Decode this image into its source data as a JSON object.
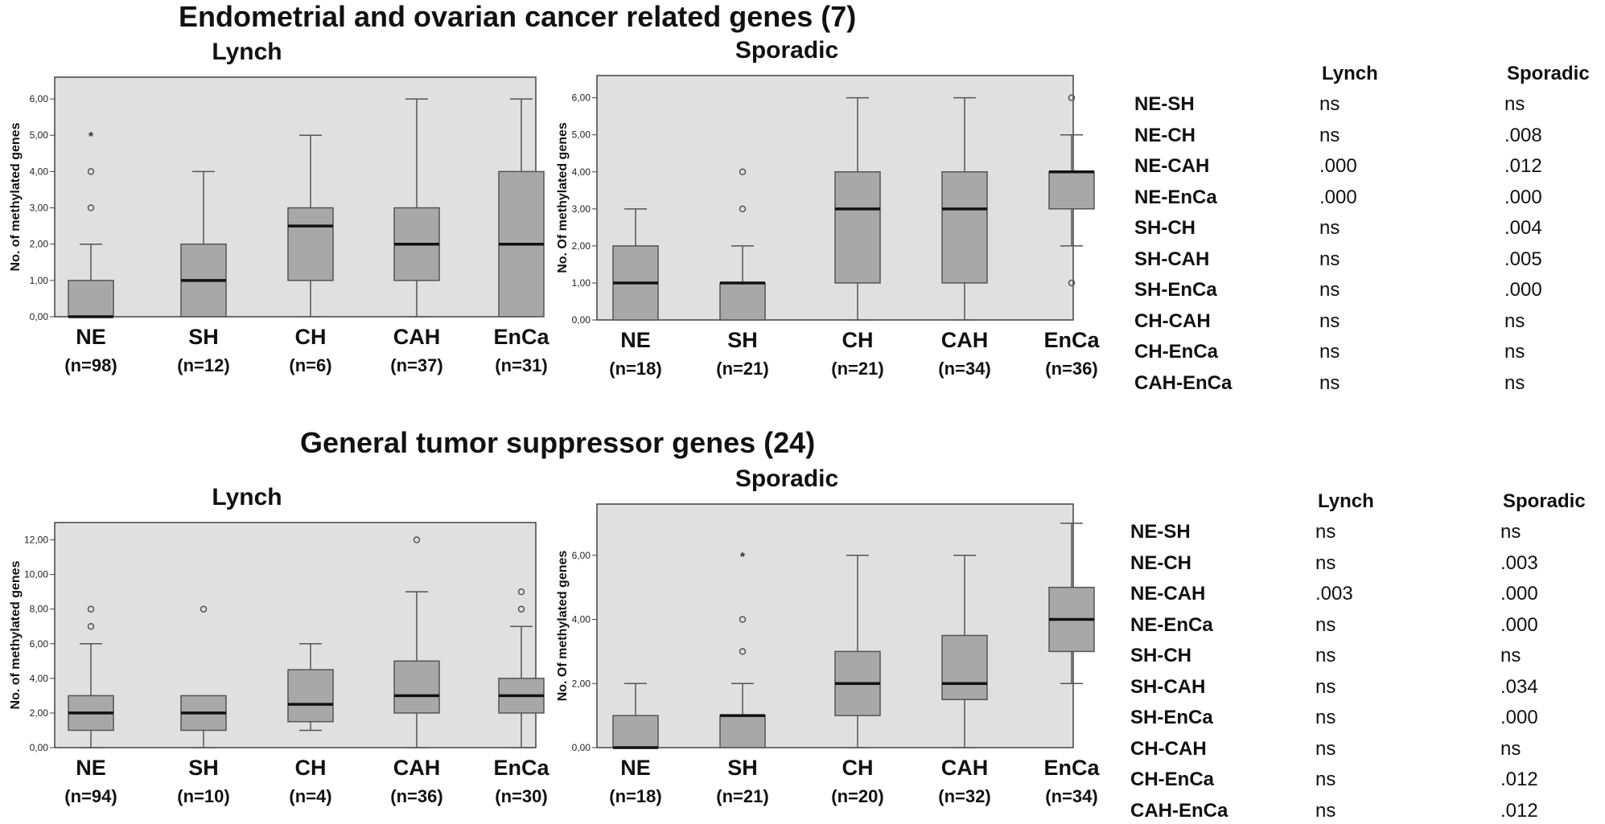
{
  "sections": [
    {
      "title": "Endometrial and ovarian cancer related genes (7)",
      "stats_table": {
        "columns": [
          "Lynch",
          "Sporadic"
        ],
        "rows": [
          {
            "pair": "NE-SH",
            "lynch": "ns",
            "sporadic": "ns"
          },
          {
            "pair": "NE-CH",
            "lynch": "ns",
            "sporadic": ".008"
          },
          {
            "pair": "NE-CAH",
            "lynch": ".000",
            "sporadic": ".012"
          },
          {
            "pair": "NE-EnCa",
            "lynch": ".000",
            "sporadic": ".000"
          },
          {
            "pair": "SH-CH",
            "lynch": "ns",
            "sporadic": ".004"
          },
          {
            "pair": "SH-CAH",
            "lynch": "ns",
            "sporadic": ".005"
          },
          {
            "pair": "SH-EnCa",
            "lynch": "ns",
            "sporadic": ".000"
          },
          {
            "pair": "CH-CAH",
            "lynch": "ns",
            "sporadic": "ns"
          },
          {
            "pair": "CH-EnCa",
            "lynch": "ns",
            "sporadic": "ns"
          },
          {
            "pair": "CAH-EnCa",
            "lynch": "ns",
            "sporadic": "ns"
          }
        ]
      }
    },
    {
      "title": "General tumor suppressor genes (24)",
      "stats_table": {
        "columns": [
          "Lynch",
          "Sporadic"
        ],
        "rows": [
          {
            "pair": "NE-SH",
            "lynch": "ns",
            "sporadic": "ns"
          },
          {
            "pair": "NE-CH",
            "lynch": "ns",
            "sporadic": ".003"
          },
          {
            "pair": "NE-CAH",
            "lynch": ".003",
            "sporadic": ".000"
          },
          {
            "pair": "NE-EnCa",
            "lynch": "ns",
            "sporadic": ".000"
          },
          {
            "pair": "SH-CH",
            "lynch": "ns",
            "sporadic": "ns"
          },
          {
            "pair": "SH-CAH",
            "lynch": "ns",
            "sporadic": ".034"
          },
          {
            "pair": "SH-EnCa",
            "lynch": "ns",
            "sporadic": ".000"
          },
          {
            "pair": "CH-CAH",
            "lynch": "ns",
            "sporadic": "ns"
          },
          {
            "pair": "CH-EnCa",
            "lynch": "ns",
            "sporadic": ".012"
          },
          {
            "pair": "CAH-EnCa",
            "lynch": "ns",
            "sporadic": ".012"
          }
        ]
      }
    }
  ],
  "chart_data": [
    {
      "type": "box",
      "title": "Lynch",
      "ylabel": "No. of methylated genes",
      "ylim": [
        0,
        6.6
      ],
      "yticks": [
        0,
        1,
        2,
        3,
        4,
        5,
        6
      ],
      "ytick_labels": [
        "0,00",
        "1,00",
        "2,00",
        "3,00",
        "4,00",
        "5,00",
        "6,00"
      ],
      "groups": [
        {
          "name": "NE",
          "n": "(n=98)",
          "min": 0,
          "q1": 0,
          "median": 0,
          "q3": 1,
          "max": 2,
          "outliers": [
            3,
            4
          ],
          "extremes": [
            5
          ]
        },
        {
          "name": "SH",
          "n": "(n=12)",
          "min": 0,
          "q1": 0,
          "median": 1,
          "q3": 2,
          "max": 4,
          "outliers": [],
          "extremes": []
        },
        {
          "name": "CH",
          "n": "(n=6)",
          "min": 0,
          "q1": 1,
          "median": 2.5,
          "q3": 3,
          "max": 5,
          "outliers": [],
          "extremes": []
        },
        {
          "name": "CAH",
          "n": "(n=37)",
          "min": 0,
          "q1": 1,
          "median": 2,
          "q3": 3,
          "max": 6,
          "outliers": [],
          "extremes": []
        },
        {
          "name": "EnCa",
          "n": "(n=31)",
          "min": 0,
          "q1": 0,
          "median": 2,
          "q3": 4,
          "max": 6,
          "outliers": [],
          "extremes": []
        }
      ]
    },
    {
      "type": "box",
      "title": "Sporadic",
      "ylabel": "No. Of methylated genes",
      "ylim": [
        0,
        6.6
      ],
      "yticks": [
        0,
        1,
        2,
        3,
        4,
        5,
        6
      ],
      "ytick_labels": [
        "0,00",
        "1,00",
        "2,00",
        "3,00",
        "4,00",
        "5,00",
        "6,00"
      ],
      "groups": [
        {
          "name": "NE",
          "n": "(n=18)",
          "min": 0,
          "q1": 0,
          "median": 1,
          "q3": 2,
          "max": 3,
          "outliers": [],
          "extremes": []
        },
        {
          "name": "SH",
          "n": "(n=21)",
          "min": 0,
          "q1": 0,
          "median": 1,
          "q3": 1,
          "max": 2,
          "outliers": [
            3,
            4
          ],
          "extremes": []
        },
        {
          "name": "CH",
          "n": "(n=21)",
          "min": 0,
          "q1": 1,
          "median": 3,
          "q3": 4,
          "max": 6,
          "outliers": [],
          "extremes": []
        },
        {
          "name": "CAH",
          "n": "(n=34)",
          "min": 0,
          "q1": 1,
          "median": 3,
          "q3": 4,
          "max": 6,
          "outliers": [],
          "extremes": []
        },
        {
          "name": "EnCa",
          "n": "(n=36)",
          "min": 2,
          "q1": 3,
          "median": 4,
          "q3": 4,
          "max": 5,
          "outliers": [
            1,
            6
          ],
          "extremes": []
        }
      ]
    },
    {
      "type": "box",
      "title": "Lynch",
      "ylabel": "No. of methylated genes",
      "ylim": [
        0,
        13
      ],
      "yticks": [
        0,
        2,
        4,
        6,
        8,
        10,
        12
      ],
      "ytick_labels": [
        "0,00",
        "2,00",
        "4,00",
        "6,00",
        "8,00",
        "10,00",
        "12,00"
      ],
      "groups": [
        {
          "name": "NE",
          "n": "(n=94)",
          "min": 0,
          "q1": 1,
          "median": 2,
          "q3": 3,
          "max": 6,
          "outliers": [
            7,
            8
          ],
          "extremes": []
        },
        {
          "name": "SH",
          "n": "(n=10)",
          "min": 0,
          "q1": 1,
          "median": 2,
          "q3": 3,
          "max": 3,
          "outliers": [
            8
          ],
          "extremes": []
        },
        {
          "name": "CH",
          "n": "(n=4)",
          "min": 1,
          "q1": 1.5,
          "median": 2.5,
          "q3": 4.5,
          "max": 6,
          "outliers": [],
          "extremes": []
        },
        {
          "name": "CAH",
          "n": "(n=36)",
          "min": 0,
          "q1": 2,
          "median": 3,
          "q3": 5,
          "max": 9,
          "outliers": [
            12
          ],
          "extremes": []
        },
        {
          "name": "EnCa",
          "n": "(n=30)",
          "min": 0,
          "q1": 2,
          "median": 3,
          "q3": 4,
          "max": 7,
          "outliers": [
            8,
            9
          ],
          "extremes": []
        }
      ]
    },
    {
      "type": "box",
      "title": "Sporadic",
      "ylabel": "No. Of methylated genes",
      "ylim": [
        0,
        7.6
      ],
      "yticks": [
        0,
        2,
        4,
        6
      ],
      "ytick_labels": [
        "0,00",
        "2,00",
        "4,00",
        "6,00"
      ],
      "groups": [
        {
          "name": "NE",
          "n": "(n=18)",
          "min": 0,
          "q1": 0,
          "median": 0,
          "q3": 1,
          "max": 2,
          "outliers": [],
          "extremes": []
        },
        {
          "name": "SH",
          "n": "(n=21)",
          "min": 0,
          "q1": 0,
          "median": 1,
          "q3": 1,
          "max": 2,
          "outliers": [
            3,
            4
          ],
          "extremes": [
            6
          ]
        },
        {
          "name": "CH",
          "n": "(n=20)",
          "min": 0,
          "q1": 1,
          "median": 2,
          "q3": 3,
          "max": 6,
          "outliers": [],
          "extremes": []
        },
        {
          "name": "CAH",
          "n": "(n=32)",
          "min": 0,
          "q1": 1.5,
          "median": 2,
          "q3": 3.5,
          "max": 6,
          "outliers": [],
          "extremes": []
        },
        {
          "name": "EnCa",
          "n": "(n=34)",
          "min": 2,
          "q1": 3,
          "median": 4,
          "q3": 5,
          "max": 7,
          "outliers": [],
          "extremes": []
        }
      ]
    }
  ]
}
